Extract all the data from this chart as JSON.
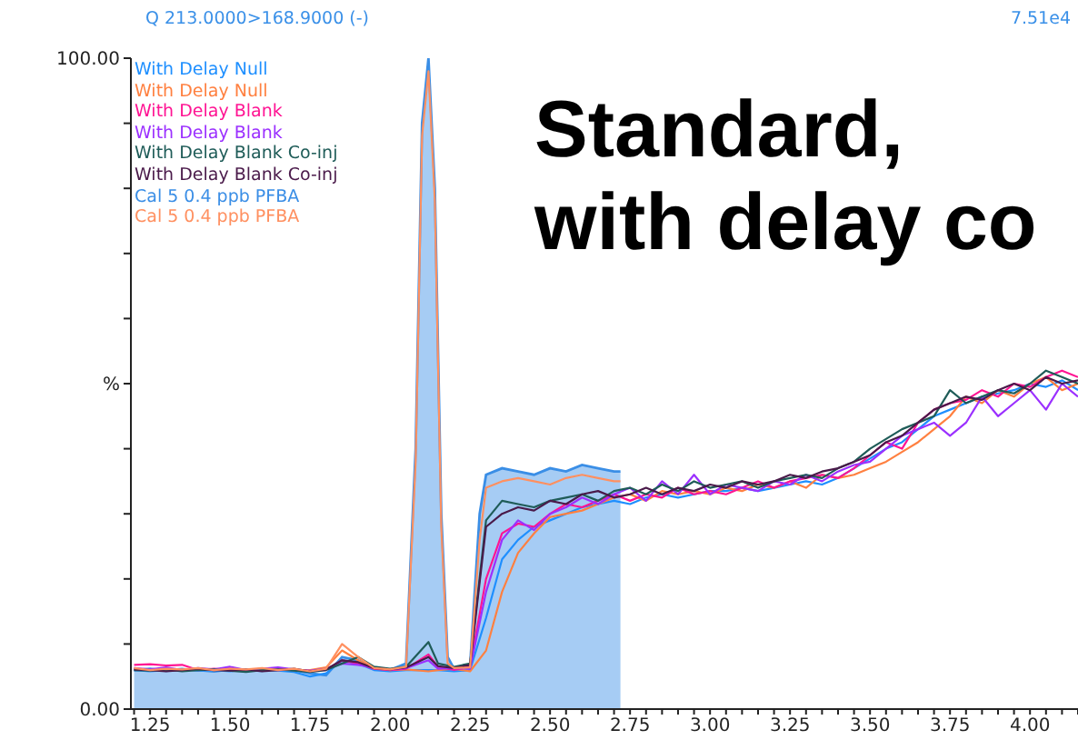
{
  "chart_data": {
    "type": "line",
    "title": "Standard,\nwith delay co",
    "annotations": [
      "Q 213.0000>168.9000 (-)",
      "7.51e4"
    ],
    "x": [
      1.2,
      1.25,
      1.3,
      1.35,
      1.4,
      1.45,
      1.5,
      1.55,
      1.6,
      1.65,
      1.7,
      1.75,
      1.8,
      1.85,
      1.9,
      1.95,
      2.0,
      2.05,
      2.12,
      2.15,
      2.2,
      2.25,
      2.3,
      2.35,
      2.4,
      2.45,
      2.5,
      2.55,
      2.6,
      2.65,
      2.7,
      2.75,
      2.8,
      2.85,
      2.9,
      2.95,
      3.0,
      3.05,
      3.1,
      3.15,
      3.2,
      3.25,
      3.3,
      3.35,
      3.4,
      3.45,
      3.5,
      3.55,
      3.6,
      3.65,
      3.7,
      3.75,
      3.8,
      3.85,
      3.9,
      3.95,
      4.0,
      4.05,
      4.1,
      4.15
    ],
    "series": [
      {
        "name": "With Delay Null",
        "color": "#1e8fff",
        "values": [
          6,
          5.8,
          6,
          6.2,
          5.9,
          6,
          5.8,
          6.1,
          6,
          5.9,
          5.7,
          5,
          5.5,
          7.5,
          7,
          6,
          5.8,
          6,
          6,
          6,
          5.8,
          6,
          14,
          23,
          26,
          28,
          29,
          30,
          31,
          31.5,
          32,
          31.5,
          32.5,
          33,
          32.5,
          33,
          33.5,
          33.5,
          34,
          33.5,
          34,
          34.5,
          35,
          34.5,
          35.5,
          37,
          38.5,
          40,
          41,
          43,
          45,
          46,
          47,
          48,
          48.5,
          49,
          50,
          49.5,
          50.5,
          49
        ]
      },
      {
        "name": "With Delay Null",
        "color": "#ff8040",
        "values": [
          6.2,
          6,
          6.1,
          5.9,
          6.2,
          6,
          6.3,
          5.9,
          6.1,
          6.2,
          6,
          6,
          6.4,
          9,
          7.5,
          6.3,
          6,
          6.1,
          5.8,
          6,
          6.2,
          5.8,
          9,
          18,
          24,
          27,
          29.5,
          30,
          30.5,
          31.5,
          32.5,
          33,
          32,
          33.5,
          33,
          33.5,
          33,
          34,
          33.5,
          34.5,
          34,
          35,
          34,
          36,
          35.5,
          36,
          37,
          38,
          39.5,
          41,
          43,
          45,
          48,
          47,
          49,
          48,
          50,
          51,
          49,
          50
        ]
      },
      {
        "name": "With Delay Blank",
        "color": "#ff1493",
        "values": [
          6.8,
          6.9,
          6.7,
          6.8,
          6,
          6.2,
          6,
          5.8,
          6.2,
          6,
          6.1,
          5.8,
          6,
          7.5,
          7,
          6.2,
          6,
          6.2,
          8.4,
          6.5,
          6,
          6.5,
          20,
          27,
          28.5,
          28,
          30,
          31.5,
          31,
          32,
          33,
          32,
          33,
          32.5,
          34,
          33,
          33.5,
          33,
          34,
          35,
          34,
          35,
          35.5,
          36,
          35.5,
          37,
          39,
          41,
          40,
          44,
          46,
          47,
          47.5,
          49,
          48,
          50,
          49.5,
          51,
          52,
          51
        ]
      },
      {
        "name": "With Delay Blank",
        "color": "#9b30ff",
        "values": [
          6.3,
          6.1,
          6.4,
          6,
          6.3,
          6.1,
          6.5,
          6,
          6.2,
          6.4,
          6.1,
          5.9,
          6.2,
          7,
          6.8,
          6.4,
          6.1,
          6.3,
          7.5,
          6.2,
          6.3,
          6.2,
          18,
          26,
          29,
          27.5,
          30,
          31,
          32.5,
          31.5,
          33,
          34,
          32,
          35,
          33,
          36,
          33,
          34.5,
          34,
          33.5,
          35,
          34.5,
          36,
          35,
          36.5,
          37.5,
          38,
          40,
          42,
          43,
          44,
          42,
          44,
          48,
          45,
          47,
          49,
          46,
          50,
          48
        ]
      },
      {
        "name": "With Delay Blank Co-inj",
        "color": "#1f5c58",
        "values": [
          6,
          5.9,
          6.1,
          5.8,
          6,
          6.1,
          5.9,
          5.7,
          6,
          6.1,
          5.9,
          5.7,
          6,
          7,
          8,
          6.5,
          6.2,
          6.5,
          10.3,
          7,
          6.5,
          7,
          29,
          32,
          31.5,
          31,
          32,
          32.5,
          33,
          32,
          33.5,
          34,
          33,
          34.5,
          33.5,
          35,
          34,
          34.5,
          35,
          34,
          35,
          35.5,
          36,
          35.5,
          37,
          38,
          40,
          41.5,
          43,
          44,
          45,
          49,
          47,
          48,
          49,
          48.5,
          50,
          52,
          51,
          50
        ]
      },
      {
        "name": "With Delay Blank Co-inj",
        "color": "#4a1a4a",
        "values": [
          6.1,
          6,
          5.8,
          6,
          6.2,
          6,
          5.9,
          6.1,
          5.8,
          6,
          6.2,
          5.8,
          6.1,
          7.5,
          7.2,
          6.3,
          6.1,
          6.4,
          8,
          6.6,
          6.3,
          6.8,
          28,
          30,
          31,
          30.5,
          32,
          31.5,
          33,
          33.5,
          32.5,
          33,
          34,
          33,
          34,
          33.5,
          34.5,
          34,
          35,
          34.5,
          35,
          36,
          35.5,
          36.5,
          37,
          38,
          39,
          41,
          42,
          44,
          46,
          47,
          48,
          47.5,
          49,
          50,
          49,
          51,
          50,
          50.5
        ]
      },
      {
        "name": "Cal 5 0.4 ppb PFBA",
        "color": "#3a8ee6",
        "type": "area",
        "x": [
          1.2,
          1.25,
          1.3,
          1.35,
          1.4,
          1.45,
          1.5,
          1.55,
          1.6,
          1.65,
          1.7,
          1.75,
          1.8,
          1.85,
          1.9,
          1.95,
          2.0,
          2.05,
          2.08,
          2.1,
          2.12,
          2.14,
          2.16,
          2.18,
          2.2,
          2.25,
          2.28,
          2.3,
          2.35,
          2.4,
          2.45,
          2.5,
          2.55,
          2.6,
          2.65,
          2.7,
          2.72
        ],
        "values": [
          6,
          6.2,
          5.9,
          6.1,
          6,
          5.8,
          6.1,
          6,
          5.9,
          6.2,
          6,
          5.5,
          5.2,
          8,
          7.5,
          6.2,
          6,
          7,
          40,
          90,
          100,
          80,
          30,
          8,
          6.2,
          6.5,
          30,
          36,
          37,
          36.5,
          36,
          37,
          36.5,
          37.5,
          37,
          36.5,
          36.5
        ]
      },
      {
        "name": "Cal 5 0.4 ppb PFBA",
        "color": "#ff9060",
        "x": [
          1.2,
          1.25,
          1.3,
          1.35,
          1.4,
          1.45,
          1.5,
          1.55,
          1.6,
          1.65,
          1.7,
          1.75,
          1.8,
          1.85,
          1.9,
          1.95,
          2.0,
          2.05,
          2.08,
          2.1,
          2.12,
          2.14,
          2.16,
          2.18,
          2.2,
          2.25,
          2.28,
          2.3,
          2.35,
          2.4,
          2.45,
          2.5,
          2.55,
          2.6,
          2.65,
          2.7,
          2.72
        ],
        "values": [
          6.3,
          6,
          6.2,
          6.1,
          6.3,
          6,
          6.2,
          6.1,
          6.3,
          6,
          6.2,
          5.8,
          6.2,
          10,
          8,
          6.3,
          6.1,
          6.5,
          38,
          88,
          98,
          78,
          28,
          7,
          6.3,
          6.4,
          26,
          34,
          35,
          35.5,
          35,
          34.5,
          35.5,
          36,
          35.5,
          35,
          35
        ]
      }
    ],
    "xlim": [
      1.19,
      4.15
    ],
    "xticks": [
      {
        "value": 1.2,
        "label": null
      },
      {
        "value": 1.25,
        "label": "1.25"
      },
      {
        "value": 1.3,
        "label": null
      },
      {
        "value": 1.35,
        "label": null
      },
      {
        "value": 1.4,
        "label": null
      },
      {
        "value": 1.45,
        "label": null
      },
      {
        "value": 1.5,
        "label": "1.50"
      },
      {
        "value": 1.55,
        "label": null
      },
      {
        "value": 1.6,
        "label": null
      },
      {
        "value": 1.65,
        "label": null
      },
      {
        "value": 1.7,
        "label": null
      },
      {
        "value": 1.75,
        "label": "1.75"
      },
      {
        "value": 1.8,
        "label": null
      },
      {
        "value": 1.85,
        "label": null
      },
      {
        "value": 1.9,
        "label": null
      },
      {
        "value": 1.95,
        "label": null
      },
      {
        "value": 2.0,
        "label": "2.00"
      },
      {
        "value": 2.05,
        "label": null
      },
      {
        "value": 2.1,
        "label": null
      },
      {
        "value": 2.15,
        "label": null
      },
      {
        "value": 2.2,
        "label": null
      },
      {
        "value": 2.25,
        "label": "2.25"
      },
      {
        "value": 2.3,
        "label": null
      },
      {
        "value": 2.35,
        "label": null
      },
      {
        "value": 2.4,
        "label": null
      },
      {
        "value": 2.45,
        "label": null
      },
      {
        "value": 2.5,
        "label": "2.50"
      },
      {
        "value": 2.55,
        "label": null
      },
      {
        "value": 2.6,
        "label": null
      },
      {
        "value": 2.65,
        "label": null
      },
      {
        "value": 2.7,
        "label": null
      },
      {
        "value": 2.75,
        "label": "2.75"
      },
      {
        "value": 2.8,
        "label": null
      },
      {
        "value": 2.85,
        "label": null
      },
      {
        "value": 2.9,
        "label": null
      },
      {
        "value": 2.95,
        "label": null
      },
      {
        "value": 3.0,
        "label": "3.00"
      },
      {
        "value": 3.05,
        "label": null
      },
      {
        "value": 3.1,
        "label": null
      },
      {
        "value": 3.15,
        "label": null
      },
      {
        "value": 3.2,
        "label": null
      },
      {
        "value": 3.25,
        "label": "3.25"
      },
      {
        "value": 3.3,
        "label": null
      },
      {
        "value": 3.35,
        "label": null
      },
      {
        "value": 3.4,
        "label": null
      },
      {
        "value": 3.45,
        "label": null
      },
      {
        "value": 3.5,
        "label": "3.50"
      },
      {
        "value": 3.55,
        "label": null
      },
      {
        "value": 3.6,
        "label": null
      },
      {
        "value": 3.65,
        "label": null
      },
      {
        "value": 3.7,
        "label": null
      },
      {
        "value": 3.75,
        "label": "3.75"
      },
      {
        "value": 3.8,
        "label": null
      },
      {
        "value": 3.85,
        "label": null
      },
      {
        "value": 3.9,
        "label": null
      },
      {
        "value": 3.95,
        "label": null
      },
      {
        "value": 4.0,
        "label": "4.00"
      },
      {
        "value": 4.05,
        "label": null
      },
      {
        "value": 4.1,
        "label": null
      },
      {
        "value": 4.15,
        "label": null
      }
    ],
    "ylim": [
      0,
      100
    ],
    "yticks": [
      {
        "value": 0,
        "label": "0.00"
      },
      {
        "value": 10,
        "label": null
      },
      {
        "value": 20,
        "label": null
      },
      {
        "value": 30,
        "label": null
      },
      {
        "value": 40,
        "label": null
      },
      {
        "value": 50,
        "label": "%"
      },
      {
        "value": 60,
        "label": null
      },
      {
        "value": 70,
        "label": null
      },
      {
        "value": 80,
        "label": null
      },
      {
        "value": 90,
        "label": null
      },
      {
        "value": 100,
        "label": "100.00"
      }
    ],
    "grid": false,
    "legend": "top left",
    "marker": "none",
    "line_style": "solid"
  }
}
